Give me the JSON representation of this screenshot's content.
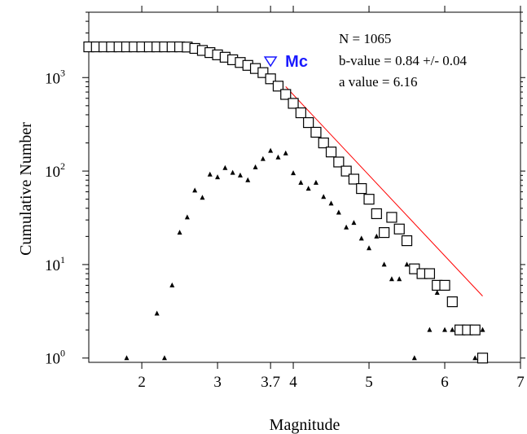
{
  "chart_data": {
    "type": "scatter",
    "title": "",
    "xlabel": "Magnitude",
    "ylabel": "Cumulative Number",
    "xlim": [
      1.3,
      7.0
    ],
    "ylim": [
      0.9,
      5000
    ],
    "y_scale": "log",
    "grid": false,
    "x_ticks": [
      {
        "value": 2,
        "label": "2"
      },
      {
        "value": 3,
        "label": "3"
      },
      {
        "value": 3.7,
        "label": "3.7"
      },
      {
        "value": 4,
        "label": "4"
      },
      {
        "value": 5,
        "label": "5"
      },
      {
        "value": 6,
        "label": "6"
      },
      {
        "value": 7,
        "label": "7"
      }
    ],
    "y_ticks": [
      {
        "value": 1,
        "base": "10",
        "exp": "0"
      },
      {
        "value": 10,
        "base": "10",
        "exp": "1"
      },
      {
        "value": 100,
        "base": "10",
        "exp": "2"
      },
      {
        "value": 1000,
        "base": "10",
        "exp": "3"
      }
    ],
    "annotations": [
      {
        "id": "n",
        "text": "N = 1065"
      },
      {
        "id": "b",
        "text": "b-value = 0.84 +/- 0.04"
      },
      {
        "id": "a",
        "text": "a value = 6.16"
      }
    ],
    "mc": {
      "label": "Mc",
      "x": 3.7,
      "y": 1500,
      "color": "#1a1aff"
    },
    "series": [
      {
        "kind": "cumulative",
        "marker": "square",
        "color": "#000000",
        "x": [
          1.3,
          1.4,
          1.5,
          1.6,
          1.7,
          1.8,
          1.9,
          2.0,
          2.1,
          2.2,
          2.3,
          2.4,
          2.5,
          2.6,
          2.7,
          2.8,
          2.9,
          3.0,
          3.1,
          3.2,
          3.3,
          3.4,
          3.5,
          3.6,
          3.7,
          3.8,
          3.9,
          4.0,
          4.1,
          4.2,
          4.3,
          4.4,
          4.5,
          4.6,
          4.7,
          4.8,
          4.9,
          5.0,
          5.1,
          5.2,
          5.3,
          5.4,
          5.5,
          5.6,
          5.7,
          5.8,
          5.9,
          6.0,
          6.1,
          6.2,
          6.3,
          6.4,
          6.5
        ],
        "values": [
          2130,
          2130,
          2130,
          2130,
          2130,
          2130,
          2130,
          2130,
          2130,
          2130,
          2130,
          2130,
          2130,
          2120,
          2050,
          1950,
          1850,
          1750,
          1650,
          1550,
          1450,
          1350,
          1250,
          1130,
          970,
          810,
          660,
          530,
          420,
          330,
          260,
          200,
          160,
          125,
          100,
          82,
          65,
          50,
          35,
          22,
          32,
          24,
          18,
          9,
          8,
          8,
          6,
          6,
          4,
          2,
          2,
          2,
          1
        ]
      },
      {
        "kind": "non-cumulative",
        "marker": "triangle",
        "color": "#000000",
        "x": [
          1.8,
          2.2,
          2.3,
          2.4,
          2.5,
          2.6,
          2.7,
          2.8,
          2.9,
          3.0,
          3.1,
          3.2,
          3.3,
          3.4,
          3.5,
          3.6,
          3.7,
          3.8,
          3.9,
          4.0,
          4.1,
          4.2,
          4.3,
          4.4,
          4.5,
          4.6,
          4.7,
          4.8,
          4.9,
          5.0,
          5.1,
          5.2,
          5.3,
          5.4,
          5.5,
          5.6,
          5.8,
          5.9,
          6.0,
          6.1,
          6.4,
          6.5
        ],
        "values": [
          1,
          3,
          1,
          6,
          22,
          32,
          62,
          52,
          92,
          86,
          108,
          96,
          90,
          80,
          110,
          135,
          165,
          140,
          155,
          95,
          75,
          65,
          75,
          53,
          45,
          36,
          25,
          28,
          19,
          15,
          20,
          10,
          7,
          7,
          10,
          1,
          2,
          5,
          2,
          2,
          1,
          2
        ]
      },
      {
        "kind": "fit",
        "marker": "line",
        "color": "#ff0000",
        "x": [
          3.9,
          6.5
        ],
        "values": [
          800,
          4.6
        ]
      }
    ]
  }
}
